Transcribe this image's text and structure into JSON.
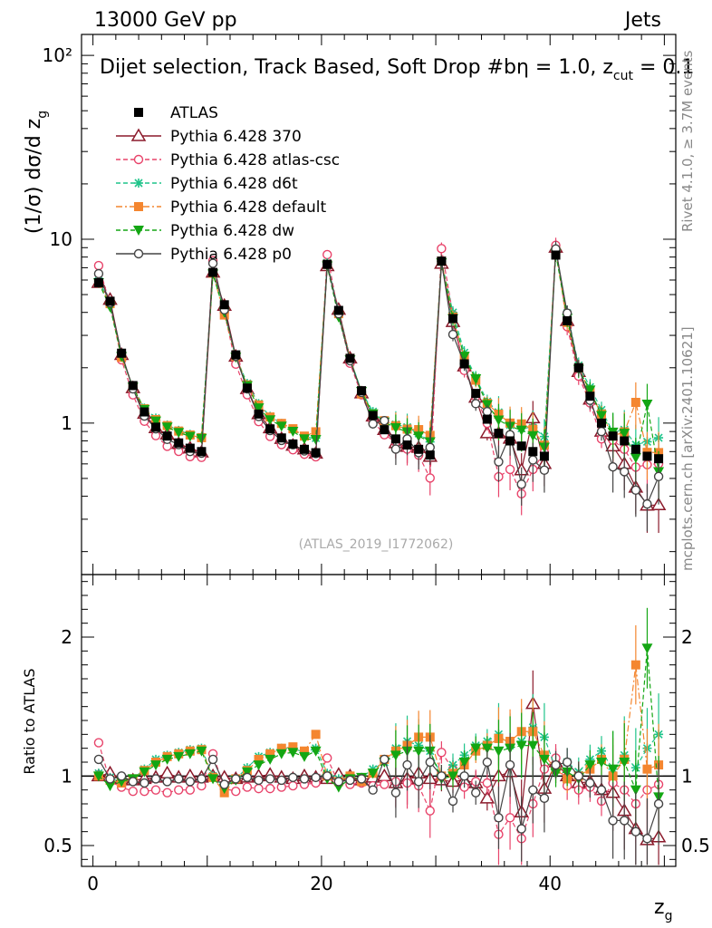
{
  "header": {
    "left": "13000 GeV pp",
    "right": "Jets",
    "title": "Dijet selection, Track Based, Soft Drop #b",
    "title_eta": "η = 1.0, z",
    "title_sub": "cut",
    "title_tail": " = 0.1",
    "watermark": "(ATLAS_2019_I1772062)",
    "side_rivet": "Rivet 4.1.0, ≥ 3.7M events",
    "side_mcplots": "mcplots.cern.ch [arXiv:2401.10621]"
  },
  "legend": [
    {
      "name": "ATLAS",
      "color": "#000000",
      "marker": "square-filled",
      "dash": "none"
    },
    {
      "name": "Pythia 6.428 370",
      "color": "#8b1a2b",
      "marker": "triangle-open",
      "dash": "solid"
    },
    {
      "name": "Pythia 6.428 atlas-csc",
      "color": "#e8436a",
      "marker": "circle-open",
      "dash": "dashed"
    },
    {
      "name": "Pythia 6.428 d6t",
      "color": "#1fc48a",
      "marker": "star",
      "dash": "dashed"
    },
    {
      "name": "Pythia 6.428 default",
      "color": "#f4862f",
      "marker": "square-filled",
      "dash": "dashdot"
    },
    {
      "name": "Pythia 6.428 dw",
      "color": "#13a613",
      "marker": "triangle-down-filled",
      "dash": "dashed"
    },
    {
      "name": "Pythia 6.428 p0",
      "color": "#444444",
      "marker": "circle-open",
      "dash": "solid"
    }
  ],
  "chart_data": {
    "type": "line",
    "xlabel": "z",
    "xlabel_sub": "g",
    "ylabel_main": "(1/σ) dσ/d z",
    "ylabel_main_sub": "g",
    "ylabel_ratio": "Ratio to ATLAS",
    "xlim": [
      -1,
      51
    ],
    "ylim_main_log": [
      0.15,
      130
    ],
    "ylim_ratio": [
      0.35,
      2.45
    ],
    "x_ticks": [
      "0",
      "20",
      "40"
    ],
    "y_ticks_main": [
      "1",
      "10",
      "10²"
    ],
    "y_ticks_ratio": [
      "0.5",
      "1",
      "2"
    ],
    "x": [
      0.5,
      1.5,
      2.5,
      3.5,
      4.5,
      5.5,
      6.5,
      7.5,
      8.5,
      9.5,
      10.5,
      11.5,
      12.5,
      13.5,
      14.5,
      15.5,
      16.5,
      17.5,
      18.5,
      19.5,
      20.5,
      21.5,
      22.5,
      23.5,
      24.5,
      25.5,
      26.5,
      27.5,
      28.5,
      29.5,
      30.5,
      31.5,
      32.5,
      33.5,
      34.5,
      35.5,
      36.5,
      37.5,
      38.5,
      39.5,
      40.5,
      41.5,
      42.5,
      43.5,
      44.5,
      45.5,
      46.5,
      47.5,
      48.5,
      49.5
    ],
    "atlas": [
      5.8,
      4.6,
      2.4,
      1.6,
      1.15,
      0.95,
      0.85,
      0.78,
      0.73,
      0.7,
      6.6,
      4.4,
      2.35,
      1.55,
      1.12,
      0.93,
      0.83,
      0.77,
      0.72,
      0.69,
      7.3,
      4.1,
      2.25,
      1.5,
      1.1,
      0.92,
      0.82,
      0.76,
      0.72,
      0.67,
      7.6,
      3.7,
      2.1,
      1.45,
      1.05,
      0.88,
      0.8,
      0.75,
      0.7,
      0.66,
      8.2,
      3.6,
      2.0,
      1.4,
      1.0,
      0.85,
      0.8,
      0.72,
      0.66,
      0.64
    ],
    "series": [
      {
        "name": "Pythia 6.428 370",
        "ratio": [
          1.0,
          1.02,
          0.98,
          0.97,
          0.98,
          0.99,
          1.02,
          0.99,
          1.0,
          0.99,
          1.0,
          0.99,
          0.98,
          0.99,
          1.0,
          1.01,
          0.99,
          0.98,
          1.0,
          0.99,
          0.98,
          1.01,
          1.0,
          0.97,
          0.99,
          1.0,
          0.95,
          0.98,
          1.02,
          0.98,
          0.97,
          0.96,
          0.97,
          0.95,
          0.84,
          1.0,
          1.03,
          0.74,
          1.52,
          0.91,
          1.1,
          1.0,
          0.95,
          0.96,
          0.9,
          0.88,
          0.75,
          0.62,
          0.54,
          0.56
        ]
      },
      {
        "name": "Pythia 6.428 atlas-csc",
        "ratio": [
          1.24,
          0.96,
          0.92,
          0.89,
          0.89,
          0.9,
          0.88,
          0.9,
          0.9,
          0.93,
          1.16,
          0.91,
          0.89,
          0.92,
          0.91,
          0.91,
          0.92,
          0.93,
          0.94,
          0.95,
          1.13,
          0.95,
          0.94,
          0.95,
          0.93,
          0.94,
          0.96,
          0.95,
          0.93,
          0.75,
          1.17,
          1.05,
          0.92,
          0.96,
          0.95,
          0.58,
          0.7,
          0.55,
          0.8,
          1.05,
          1.13,
          0.93,
          0.9,
          0.92,
          0.82,
          0.95,
          0.9,
          0.8,
          0.9,
          0.94
        ]
      },
      {
        "name": "Pythia 6.428 d6t",
        "ratio": [
          1.02,
          0.99,
          0.95,
          0.98,
          1.05,
          1.12,
          1.15,
          1.17,
          1.19,
          1.2,
          1.0,
          0.92,
          0.98,
          1.06,
          1.14,
          1.17,
          1.2,
          1.2,
          1.17,
          1.2,
          1.02,
          0.98,
          1.0,
          0.99,
          1.05,
          1.1,
          1.2,
          1.25,
          1.22,
          1.18,
          1.0,
          1.08,
          1.15,
          1.22,
          1.25,
          1.3,
          1.22,
          1.25,
          1.35,
          1.28,
          1.05,
          1.1,
          1.03,
          1.12,
          1.18,
          1.05,
          1.15,
          1.06,
          1.2,
          1.3
        ]
      },
      {
        "name": "Pythia 6.428 default",
        "ratio": [
          1.0,
          0.97,
          0.95,
          0.98,
          1.04,
          1.1,
          1.14,
          1.16,
          1.18,
          1.19,
          0.99,
          0.88,
          0.98,
          1.04,
          1.12,
          1.16,
          1.2,
          1.21,
          1.18,
          1.3,
          1.0,
          0.96,
          1.0,
          0.96,
          1.02,
          1.12,
          1.18,
          1.22,
          1.28,
          1.28,
          1.0,
          1.02,
          1.08,
          1.18,
          1.22,
          1.27,
          1.25,
          1.32,
          1.32,
          1.15,
          1.05,
          0.98,
          1.0,
          1.05,
          1.12,
          1.0,
          1.12,
          1.8,
          1.05,
          1.08
        ]
      },
      {
        "name": "Pythia 6.428 dw",
        "ratio": [
          1.0,
          0.93,
          0.96,
          0.98,
          1.03,
          1.08,
          1.12,
          1.14,
          1.16,
          1.18,
          0.98,
          0.91,
          0.97,
          1.03,
          1.08,
          1.12,
          1.16,
          1.17,
          1.14,
          1.18,
          0.98,
          0.92,
          0.98,
          0.99,
          1.02,
          1.1,
          1.15,
          1.18,
          1.18,
          1.18,
          0.98,
          1.0,
          1.1,
          1.2,
          1.2,
          1.18,
          1.2,
          1.22,
          1.22,
          1.12,
          1.02,
          1.03,
          0.98,
          1.08,
          1.1,
          1.05,
          1.1,
          0.9,
          1.92,
          0.85
        ]
      },
      {
        "name": "Pythia 6.428 p0",
        "ratio": [
          1.12,
          0.98,
          1.0,
          0.96,
          0.95,
          0.98,
          0.96,
          0.98,
          0.96,
          0.98,
          1.12,
          0.94,
          0.98,
          0.99,
          0.97,
          0.98,
          0.97,
          0.99,
          0.98,
          0.99,
          1.0,
          0.96,
          0.97,
          0.98,
          0.9,
          1.12,
          0.88,
          1.08,
          0.96,
          1.1,
          1.0,
          0.82,
          1.0,
          0.88,
          1.1,
          0.7,
          1.08,
          0.62,
          0.9,
          0.84,
          1.08,
          1.1,
          1.0,
          0.95,
          0.9,
          0.68,
          0.68,
          0.6,
          0.55,
          0.8
        ]
      }
    ]
  }
}
